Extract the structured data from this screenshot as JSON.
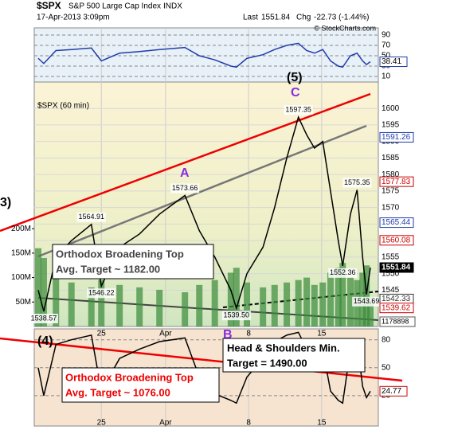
{
  "header": {
    "symbol": "$SPX",
    "name": "S&P 500 Large Cap Index",
    "exchange": "INDX",
    "date": "17-Apr-2013 3:09pm",
    "last_label": "Last",
    "last": 1551.84,
    "chg_label": "Chg",
    "chg": "-22.73 (-1.44%)",
    "copyright": "© StockCharts.com"
  },
  "chart_data": {
    "type": "line",
    "label": "$SPX (60 min)",
    "color": "#000000",
    "x": [
      0,
      1,
      3.2,
      6,
      9.6,
      11.4,
      14.7,
      18.3,
      21.9,
      26.5,
      29.1,
      31.9,
      34.8,
      35.8,
      37.7,
      40.6,
      42.7,
      44.9,
      47,
      48.5,
      49.9,
      51.4,
      52.8,
      54.2,
      55,
      56.4,
      57.6,
      58.6,
      59.3,
      60
    ],
    "values": [
      1545,
      1538.57,
      1555,
      1560,
      1564.91,
      1546.22,
      1558,
      1562,
      1568,
      1573.66,
      1563,
      1555,
      1545,
      1539.5,
      1550,
      1558,
      1570,
      1585,
      1597.35,
      1592,
      1588,
      1590,
      1575,
      1560,
      1552.36,
      1568,
      1575.35,
      1555,
      1543.69,
      1551.84
    ],
    "value_labels": [
      null,
      "1538.57",
      null,
      null,
      "1564.91",
      "1546.22",
      null,
      null,
      null,
      "1573.66",
      null,
      null,
      null,
      "1539.50",
      null,
      null,
      null,
      null,
      "1597.35",
      null,
      null,
      null,
      null,
      null,
      "1552.36",
      null,
      "1575.35",
      null,
      "1543.69",
      null
    ],
    "xlim": [
      0,
      60
    ],
    "xticks": [
      {
        "value": 11.4,
        "label": "25"
      },
      {
        "value": 23,
        "label": "Apr"
      },
      {
        "value": 38,
        "label": "8"
      },
      {
        "value": 51.2,
        "label": "15"
      }
    ],
    "ylim": [
      1534,
      1608
    ],
    "yticks": [
      1545,
      1550,
      1555,
      1560,
      1565,
      1570,
      1575,
      1580,
      1585,
      1590,
      1595,
      1600
    ],
    "grid": true,
    "right_labels": {
      "values": [
        1591.26,
        1577.83,
        1565.44,
        1560.08,
        1551.84,
        1542.33,
        1539.62
      ],
      "colors": [
        "#1e3caa",
        "#cc0000",
        "#1e3caa",
        "#cc0000",
        "#000000",
        "#333333",
        "#cc0000"
      ]
    },
    "volume": {
      "color": "#3a8a3a",
      "values": [
        160000000,
        140000000,
        110000000,
        90000000,
        80000000,
        95000000,
        85000000,
        80000000,
        75000000,
        70000000,
        85000000,
        95000000,
        110000000,
        120000000,
        90000000,
        80000000,
        85000000,
        90000000,
        95000000,
        100000000,
        85000000,
        90000000,
        110000000,
        120000000,
        130000000,
        100000000,
        95000000,
        110000000,
        125000000,
        60000000
      ],
      "ylim": [
        0,
        500000000
      ],
      "yticks": [
        {
          "value": 50000000,
          "label": "50M"
        },
        {
          "value": 100000000,
          "label": "100M"
        },
        {
          "value": 150000000,
          "label": "150M"
        },
        {
          "value": 200000000,
          "label": "200M"
        }
      ],
      "current": 1178898
    },
    "rsi_top": {
      "color": "#1e3caa",
      "values": [
        45,
        35,
        60,
        62,
        65,
        40,
        55,
        58,
        62,
        66,
        50,
        42,
        30,
        28,
        45,
        52,
        62,
        70,
        74,
        60,
        55,
        62,
        40,
        30,
        28,
        50,
        55,
        40,
        33,
        38.41
      ],
      "ylim": [
        0,
        100
      ],
      "yticks": [
        10,
        30,
        50,
        70,
        90
      ]
    },
    "rsi_bottom": {
      "color": "#000000",
      "values": [
        50,
        20,
        75,
        80,
        85,
        25,
        60,
        70,
        78,
        82,
        40,
        22,
        15,
        12,
        40,
        60,
        78,
        85,
        88,
        70,
        50,
        70,
        25,
        15,
        12,
        70,
        78,
        30,
        18,
        24.77
      ],
      "ylim": [
        -10,
        90
      ],
      "yticks": [
        20,
        50,
        80
      ]
    },
    "annotations": {
      "wave_a": "A",
      "wave_c": "C",
      "wave_5": "(5)",
      "wave_b": "B",
      "wave_4": "(4)",
      "wave_3": "3)",
      "box1_line1": "Orthodox Broadening Top",
      "box1_line2": "Avg. Target ~ 1182.00",
      "box2_line1": "Head & Shoulders Min.",
      "box2_line2": "Target = 1490.00",
      "box3_line1": "Orthodox Broadening Top",
      "box3_line2": "Avg. Target ~ 1076.00"
    }
  }
}
